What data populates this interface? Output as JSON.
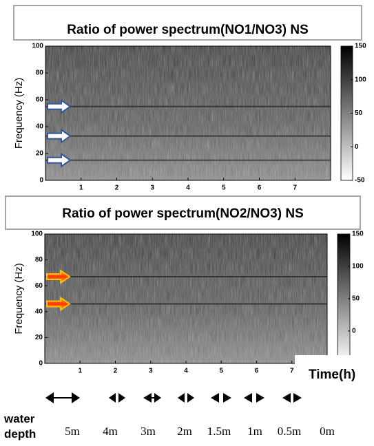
{
  "chart_data": [
    {
      "type": "spectrogram",
      "title": "Ratio of power spectrum(NO1/NO3) NS",
      "y_label": "Frequency (Hz)",
      "xlim": [
        0,
        8
      ],
      "xticks": [
        1,
        2,
        3,
        4,
        5,
        6,
        7
      ],
      "ylim": [
        0,
        100
      ],
      "yticks": [
        0,
        20,
        40,
        60,
        80,
        100
      ],
      "colorbar": {
        "lim": [
          -50,
          150
        ],
        "ticks": [
          -50,
          0,
          50,
          100,
          150
        ]
      },
      "arrows": {
        "color": "#2f5597",
        "values": [
          55,
          33,
          15
        ]
      }
    },
    {
      "type": "spectrogram",
      "title": "Ratio of power spectrum(NO2/NO3) NS",
      "y_label": "Frequency (Hz)",
      "x_label": "Time(h)",
      "xlim": [
        0,
        8
      ],
      "xticks": [
        1,
        2,
        3,
        4,
        5,
        6,
        7
      ],
      "ylim": [
        0,
        100
      ],
      "yticks": [
        0,
        20,
        40,
        60,
        80,
        100
      ],
      "colorbar": {
        "lim": [
          -50,
          150
        ],
        "ticks": [
          0,
          50,
          100,
          150
        ]
      },
      "arrows": {
        "color": "#ff3300",
        "values": [
          67,
          46
        ]
      }
    }
  ],
  "water_depth": {
    "label": "water depth",
    "depths": [
      "5m",
      "4m",
      "3m",
      "2m",
      "1.5m",
      "1m",
      "0.5m",
      "0m"
    ]
  }
}
